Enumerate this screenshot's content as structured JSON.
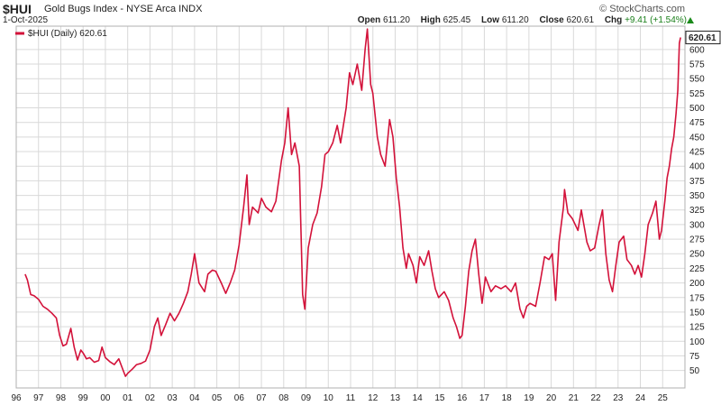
{
  "header": {
    "symbol": "$HUI",
    "name": "Gold Bugs Index - NYSE Arca INDX",
    "date": "1-Oct-2025",
    "brand": "© StockCharts.com",
    "open_label": "Open",
    "open_value": "611.20",
    "high_label": "High",
    "high_value": "625.45",
    "low_label": "Low",
    "low_value": "611.20",
    "close_label": "Close",
    "close_value": "620.61",
    "chg_label": "Chg",
    "chg_value": "+9.41 (+1.54%)"
  },
  "colors": {
    "line": "#d3123a",
    "grid": "#d9d9d9",
    "frame": "#b0b0b0",
    "up": "#1a8a1a"
  },
  "chart_data": {
    "type": "line",
    "title": "$HUI Gold Bugs Index - NYSE Arca INDX",
    "legend": "$HUI (Daily) 620.61",
    "legend_position": "top-left",
    "last_value_label": "620.61",
    "grid": true,
    "yaxis_side": "right",
    "ylim": [
      20,
      640
    ],
    "y_ticks": [
      50,
      75,
      100,
      125,
      150,
      175,
      200,
      225,
      250,
      275,
      300,
      325,
      350,
      375,
      400,
      425,
      450,
      475,
      500,
      525,
      550,
      575,
      600
    ],
    "xlim": [
      1996.0,
      2026.0
    ],
    "x_ticks": [
      {
        "label": "96",
        "x": 1996.0
      },
      {
        "label": "97",
        "x": 1997.0
      },
      {
        "label": "98",
        "x": 1998.0
      },
      {
        "label": "99",
        "x": 1999.0
      },
      {
        "label": "00",
        "x": 2000.0
      },
      {
        "label": "01",
        "x": 2001.0
      },
      {
        "label": "02",
        "x": 2002.0
      },
      {
        "label": "03",
        "x": 2003.0
      },
      {
        "label": "04",
        "x": 2004.0
      },
      {
        "label": "05",
        "x": 2005.0
      },
      {
        "label": "06",
        "x": 2006.0
      },
      {
        "label": "07",
        "x": 2007.0
      },
      {
        "label": "08",
        "x": 2008.0
      },
      {
        "label": "09",
        "x": 2009.0
      },
      {
        "label": "10",
        "x": 2010.0
      },
      {
        "label": "11",
        "x": 2011.0
      },
      {
        "label": "12",
        "x": 2012.0
      },
      {
        "label": "13",
        "x": 2013.0
      },
      {
        "label": "14",
        "x": 2014.0
      },
      {
        "label": "15",
        "x": 2015.0
      },
      {
        "label": "16",
        "x": 2016.0
      },
      {
        "label": "17",
        "x": 2017.0
      },
      {
        "label": "18",
        "x": 2018.0
      },
      {
        "label": "19",
        "x": 2019.0
      },
      {
        "label": "20",
        "x": 2020.0
      },
      {
        "label": "21",
        "x": 2021.0
      },
      {
        "label": "22",
        "x": 2022.0
      },
      {
        "label": "23",
        "x": 2023.0
      },
      {
        "label": "24",
        "x": 2024.0
      },
      {
        "label": "25",
        "x": 2025.0
      }
    ],
    "series": [
      {
        "name": "$HUI (Daily)",
        "points": [
          [
            1996.4,
            215
          ],
          [
            1996.5,
            205
          ],
          [
            1996.65,
            180
          ],
          [
            1996.8,
            178
          ],
          [
            1997.0,
            172
          ],
          [
            1997.2,
            160
          ],
          [
            1997.4,
            155
          ],
          [
            1997.6,
            148
          ],
          [
            1997.8,
            140
          ],
          [
            1997.95,
            110
          ],
          [
            1998.1,
            92
          ],
          [
            1998.25,
            95
          ],
          [
            1998.45,
            122
          ],
          [
            1998.6,
            90
          ],
          [
            1998.75,
            68
          ],
          [
            1998.9,
            85
          ],
          [
            1999.0,
            80
          ],
          [
            1999.15,
            70
          ],
          [
            1999.3,
            72
          ],
          [
            1999.5,
            64
          ],
          [
            1999.7,
            67
          ],
          [
            1999.85,
            90
          ],
          [
            2000.0,
            72
          ],
          [
            2000.2,
            65
          ],
          [
            2000.4,
            60
          ],
          [
            2000.6,
            70
          ],
          [
            2000.8,
            50
          ],
          [
            2000.9,
            40
          ],
          [
            2001.0,
            45
          ],
          [
            2001.2,
            52
          ],
          [
            2001.4,
            60
          ],
          [
            2001.6,
            62
          ],
          [
            2001.8,
            66
          ],
          [
            2002.0,
            85
          ],
          [
            2002.2,
            125
          ],
          [
            2002.35,
            140
          ],
          [
            2002.5,
            110
          ],
          [
            2002.7,
            128
          ],
          [
            2002.9,
            148
          ],
          [
            2003.1,
            135
          ],
          [
            2003.3,
            148
          ],
          [
            2003.5,
            165
          ],
          [
            2003.7,
            185
          ],
          [
            2003.85,
            215
          ],
          [
            2004.0,
            250
          ],
          [
            2004.2,
            200
          ],
          [
            2004.45,
            185
          ],
          [
            2004.6,
            215
          ],
          [
            2004.8,
            222
          ],
          [
            2004.95,
            220
          ],
          [
            2005.2,
            200
          ],
          [
            2005.4,
            182
          ],
          [
            2005.6,
            200
          ],
          [
            2005.8,
            222
          ],
          [
            2006.0,
            265
          ],
          [
            2006.2,
            330
          ],
          [
            2006.35,
            385
          ],
          [
            2006.45,
            300
          ],
          [
            2006.6,
            330
          ],
          [
            2006.85,
            320
          ],
          [
            2007.0,
            345
          ],
          [
            2007.2,
            330
          ],
          [
            2007.45,
            322
          ],
          [
            2007.65,
            340
          ],
          [
            2007.9,
            410
          ],
          [
            2008.05,
            440
          ],
          [
            2008.2,
            500
          ],
          [
            2008.35,
            420
          ],
          [
            2008.5,
            440
          ],
          [
            2008.7,
            400
          ],
          [
            2008.85,
            180
          ],
          [
            2008.95,
            155
          ],
          [
            2009.1,
            260
          ],
          [
            2009.3,
            300
          ],
          [
            2009.5,
            320
          ],
          [
            2009.7,
            365
          ],
          [
            2009.85,
            420
          ],
          [
            2010.0,
            425
          ],
          [
            2010.2,
            440
          ],
          [
            2010.4,
            470
          ],
          [
            2010.55,
            440
          ],
          [
            2010.8,
            500
          ],
          [
            2010.95,
            560
          ],
          [
            2011.1,
            540
          ],
          [
            2011.3,
            575
          ],
          [
            2011.5,
            530
          ],
          [
            2011.65,
            600
          ],
          [
            2011.75,
            635
          ],
          [
            2011.9,
            540
          ],
          [
            2012.0,
            525
          ],
          [
            2012.2,
            450
          ],
          [
            2012.35,
            420
          ],
          [
            2012.55,
            400
          ],
          [
            2012.75,
            480
          ],
          [
            2012.9,
            450
          ],
          [
            2013.05,
            380
          ],
          [
            2013.2,
            330
          ],
          [
            2013.35,
            260
          ],
          [
            2013.5,
            225
          ],
          [
            2013.6,
            250
          ],
          [
            2013.8,
            230
          ],
          [
            2013.95,
            200
          ],
          [
            2014.1,
            245
          ],
          [
            2014.3,
            230
          ],
          [
            2014.5,
            255
          ],
          [
            2014.65,
            220
          ],
          [
            2014.8,
            190
          ],
          [
            2014.95,
            175
          ],
          [
            2015.2,
            185
          ],
          [
            2015.4,
            170
          ],
          [
            2015.6,
            140
          ],
          [
            2015.75,
            125
          ],
          [
            2015.9,
            105
          ],
          [
            2016.0,
            110
          ],
          [
            2016.15,
            160
          ],
          [
            2016.3,
            220
          ],
          [
            2016.45,
            255
          ],
          [
            2016.6,
            275
          ],
          [
            2016.75,
            215
          ],
          [
            2016.9,
            165
          ],
          [
            2017.05,
            210
          ],
          [
            2017.3,
            185
          ],
          [
            2017.5,
            195
          ],
          [
            2017.75,
            190
          ],
          [
            2017.95,
            195
          ],
          [
            2018.2,
            185
          ],
          [
            2018.4,
            200
          ],
          [
            2018.6,
            155
          ],
          [
            2018.75,
            140
          ],
          [
            2018.9,
            160
          ],
          [
            2019.05,
            165
          ],
          [
            2019.3,
            160
          ],
          [
            2019.5,
            200
          ],
          [
            2019.7,
            245
          ],
          [
            2019.9,
            240
          ],
          [
            2020.05,
            250
          ],
          [
            2020.2,
            170
          ],
          [
            2020.35,
            270
          ],
          [
            2020.55,
            330
          ],
          [
            2020.6,
            360
          ],
          [
            2020.75,
            320
          ],
          [
            2020.95,
            310
          ],
          [
            2021.2,
            290
          ],
          [
            2021.35,
            325
          ],
          [
            2021.6,
            270
          ],
          [
            2021.75,
            255
          ],
          [
            2021.95,
            260
          ],
          [
            2022.15,
            300
          ],
          [
            2022.3,
            325
          ],
          [
            2022.45,
            250
          ],
          [
            2022.6,
            205
          ],
          [
            2022.75,
            185
          ],
          [
            2022.9,
            230
          ],
          [
            2023.05,
            270
          ],
          [
            2023.25,
            280
          ],
          [
            2023.4,
            240
          ],
          [
            2023.6,
            230
          ],
          [
            2023.75,
            215
          ],
          [
            2023.9,
            230
          ],
          [
            2024.05,
            210
          ],
          [
            2024.2,
            250
          ],
          [
            2024.35,
            300
          ],
          [
            2024.55,
            320
          ],
          [
            2024.7,
            340
          ],
          [
            2024.85,
            275
          ],
          [
            2024.95,
            290
          ],
          [
            2025.1,
            340
          ],
          [
            2025.2,
            380
          ],
          [
            2025.3,
            400
          ],
          [
            2025.4,
            430
          ],
          [
            2025.5,
            450
          ],
          [
            2025.6,
            490
          ],
          [
            2025.68,
            530
          ],
          [
            2025.75,
            611
          ],
          [
            2025.8,
            620.61
          ]
        ]
      }
    ]
  }
}
